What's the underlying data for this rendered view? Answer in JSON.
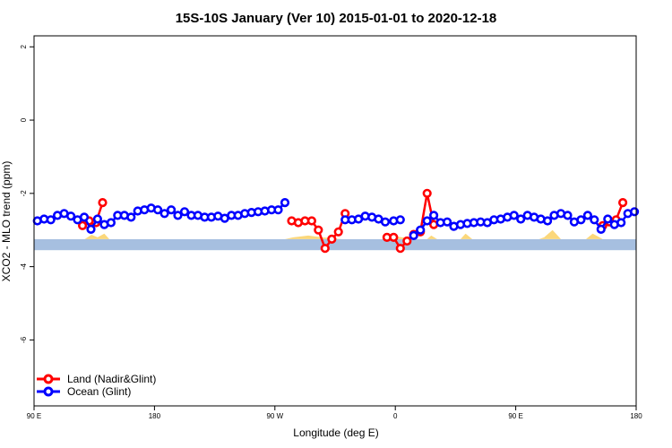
{
  "chart_data": {
    "type": "line",
    "title": "15S-10S January (Ver 10)   2015-01-01 to 2020-12-18",
    "xlabel": "Longitude (deg E)",
    "ylabel": "XCO2 - MLO trend (ppm)",
    "xlim": [
      90,
      450
    ],
    "ylim": [
      -7.8,
      2.3
    ],
    "x_ticks": [
      {
        "value": 90,
        "label": "90 E"
      },
      {
        "value": 162,
        "label": "180"
      },
      {
        "value": 234,
        "label": "90 W"
      },
      {
        "value": 306,
        "label": "0"
      },
      {
        "value": 378,
        "label": "90 E"
      },
      {
        "value": 450,
        "label": "180"
      }
    ],
    "y_ticks": [
      2,
      0,
      -2,
      -4,
      -6
    ],
    "grid": false,
    "legend_position": "bottom-left",
    "colors": {
      "land": "#ff0000",
      "ocean": "#0000ff",
      "band": "#a6bfe0",
      "topo": "#fbd77a"
    },
    "band_range": [
      -3.55,
      -3.25
    ],
    "topography": [
      {
        "range": [
          120.3,
          135.0
        ],
        "peaks": [
          [
            124.4,
            -3.13
          ],
          [
            128.0,
            -3.2
          ],
          [
            132.0,
            -3.1
          ]
        ]
      },
      {
        "range": [
          240.0,
          274.0
        ],
        "peaks": [
          [
            245.0,
            -3.2
          ],
          [
            254.0,
            -3.15
          ],
          [
            262.0,
            -3.2
          ]
        ]
      },
      {
        "range": [
          300.5,
          318.0
        ],
        "peaks": [
          [
            303.0,
            -3.15
          ],
          [
            310.0,
            -3.2
          ]
        ]
      },
      {
        "range": [
          325.0,
          331.0
        ],
        "peaks": [
          [
            327.5,
            -3.15
          ]
        ]
      },
      {
        "range": [
          345.0,
          352.0
        ],
        "peaks": [
          [
            348.0,
            -3.1
          ]
        ]
      },
      {
        "range": [
          392.0,
          405.0
        ],
        "peaks": [
          [
            395.0,
            -3.2
          ],
          [
            400.0,
            -3.0
          ]
        ]
      },
      {
        "range": [
          420.0,
          430.0
        ],
        "peaks": [
          [
            424.0,
            -3.1
          ]
        ]
      }
    ],
    "series": [
      {
        "name": "Land (Nadir&Glint)",
        "segments": [
          {
            "x": [
              119,
              123,
              127,
              131
            ],
            "y": [
              -2.88,
              -2.75,
              -2.8,
              -2.25
            ]
          },
          {
            "x": [
              244,
              248,
              252,
              256,
              260,
              264,
              268,
              272,
              276
            ],
            "y": [
              -2.75,
              -2.8,
              -2.75,
              -2.75,
              -3.0,
              -3.5,
              -3.25,
              -3.05,
              -2.55
            ]
          },
          {
            "x": [
              301,
              305,
              309,
              313,
              317,
              321,
              325,
              329
            ],
            "y": [
              -3.2,
              -3.2,
              -3.5,
              -3.3,
              -3.12,
              -3.05,
              -2.0,
              -2.85
            ]
          },
          {
            "x": [
              430,
              434,
              438,
              442
            ],
            "y": [
              -2.88,
              -2.78,
              -2.72,
              -2.25
            ]
          }
        ]
      },
      {
        "name": "Ocean (Glint)",
        "segments": [
          {
            "x": [
              92,
              96,
              100,
              104,
              108,
              112,
              116,
              120,
              124,
              128,
              132,
              136,
              140,
              144,
              148,
              152,
              156,
              160,
              164,
              168,
              172,
              176,
              180,
              184,
              188,
              192,
              196,
              200,
              204,
              208,
              212,
              216,
              220,
              224,
              228,
              232,
              236,
              240
            ],
            "y": [
              -2.75,
              -2.7,
              -2.72,
              -2.6,
              -2.55,
              -2.62,
              -2.72,
              -2.65,
              -2.98,
              -2.7,
              -2.85,
              -2.8,
              -2.6,
              -2.6,
              -2.65,
              -2.48,
              -2.45,
              -2.4,
              -2.45,
              -2.55,
              -2.45,
              -2.6,
              -2.5,
              -2.6,
              -2.6,
              -2.65,
              -2.65,
              -2.62,
              -2.68,
              -2.6,
              -2.6,
              -2.55,
              -2.52,
              -2.5,
              -2.48,
              -2.45,
              -2.45,
              -2.25
            ]
          },
          {
            "x": [
              276,
              280,
              284,
              288,
              292,
              296,
              300
            ],
            "y": [
              -2.72,
              -2.72,
              -2.7,
              -2.62,
              -2.65,
              -2.7,
              -2.78
            ]
          },
          {
            "x": [
              305,
              309
            ],
            "y": [
              -2.75,
              -2.72
            ]
          },
          {
            "x": [
              317,
              321,
              325,
              329,
              333,
              337,
              341,
              345,
              349,
              353,
              357,
              361,
              365,
              369,
              373,
              377,
              381,
              385,
              389,
              393,
              397,
              401,
              405,
              409,
              413,
              417,
              421,
              425,
              429,
              433,
              437,
              441,
              445,
              449
            ],
            "y": [
              -3.15,
              -3.0,
              -2.75,
              -2.6,
              -2.8,
              -2.78,
              -2.9,
              -2.85,
              -2.82,
              -2.8,
              -2.78,
              -2.8,
              -2.72,
              -2.7,
              -2.65,
              -2.6,
              -2.7,
              -2.6,
              -2.65,
              -2.7,
              -2.75,
              -2.6,
              -2.55,
              -2.6,
              -2.78,
              -2.72,
              -2.6,
              -2.72,
              -2.98,
              -2.7,
              -2.85,
              -2.8,
              -2.55,
              -2.5
            ]
          }
        ]
      }
    ]
  }
}
